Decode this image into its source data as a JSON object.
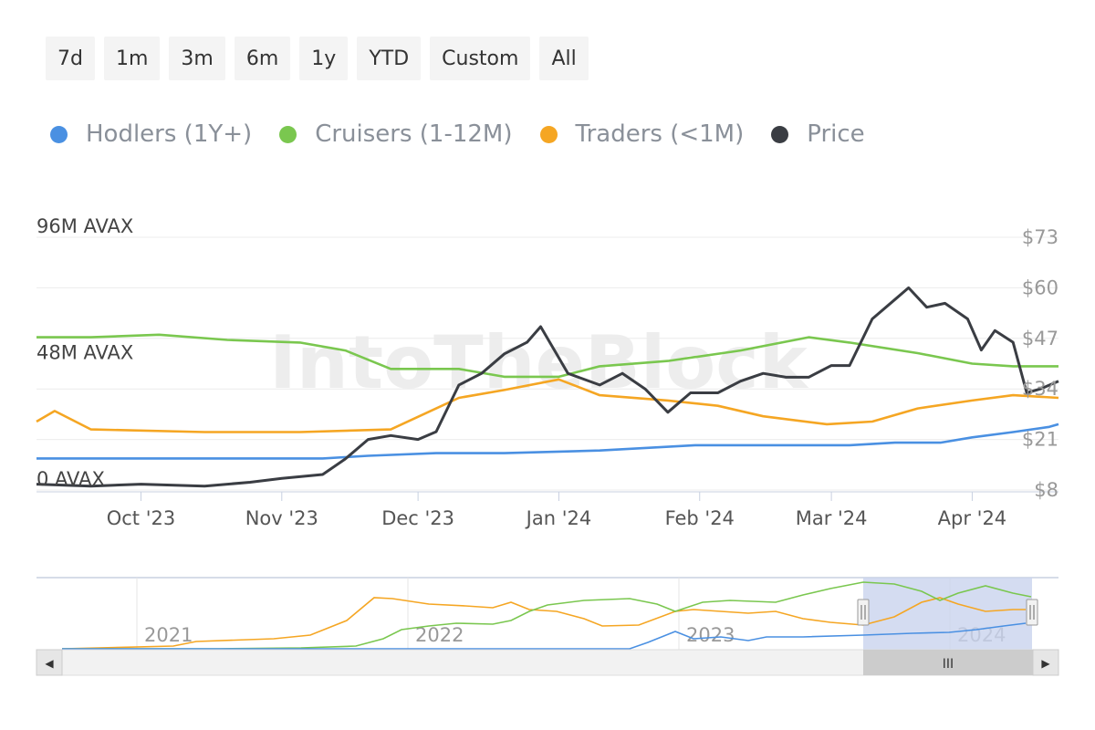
{
  "range_buttons": [
    "7d",
    "1m",
    "3m",
    "6m",
    "1y",
    "YTD",
    "Custom",
    "All"
  ],
  "watermark": "IntoTheBlock",
  "colors": {
    "hodlers": "#4a90e2",
    "cruisers": "#7ac74f",
    "traders": "#f5a623",
    "price": "#3a3d43",
    "navigator_selection": "#c9d3ee"
  },
  "chart_data": {
    "type": "line",
    "legend": [
      {
        "name": "Hodlers (1Y+)",
        "color": "#4a90e2"
      },
      {
        "name": "Cruisers (1-12M)",
        "color": "#7ac74f"
      },
      {
        "name": "Traders (<1M)",
        "color": "#f5a623"
      },
      {
        "name": "Price",
        "color": "#3a3d43"
      }
    ],
    "legend_position": "top-left",
    "x_ticks": [
      "Oct '23",
      "Nov '23",
      "Dec '23",
      "Jan '24",
      "Feb '24",
      "Mar '24",
      "Apr '24"
    ],
    "x_tick_dates": [
      "2023-10-01",
      "2023-11-01",
      "2023-12-01",
      "2024-01-01",
      "2024-02-01",
      "2024-03-01",
      "2024-04-01"
    ],
    "x_range": [
      "2023-09-08",
      "2024-04-20"
    ],
    "y_left": {
      "range": [
        0,
        96
      ],
      "unit": "M AVAX",
      "ticks": [
        "0 AVAX",
        "48M AVAX",
        "96M AVAX"
      ],
      "tick_values": [
        0,
        48,
        96
      ]
    },
    "y_right": {
      "range": [
        8,
        73
      ],
      "unit": "$",
      "ticks": [
        "$8",
        "$21",
        "$34",
        "$47",
        "$60",
        "$73"
      ],
      "tick_values": [
        8,
        21,
        34,
        47,
        60,
        73
      ]
    },
    "grid": true,
    "series": [
      {
        "name": "Hodlers (1Y+)",
        "axis": "left",
        "x": [
          "2023-09-08",
          "2023-10-15",
          "2023-11-10",
          "2023-11-20",
          "2023-12-05",
          "2023-12-20",
          "2024-01-10",
          "2024-01-31",
          "2024-02-20",
          "2024-03-05",
          "2024-03-15",
          "2024-03-25",
          "2024-04-01",
          "2024-04-10",
          "2024-04-18",
          "2024-04-20"
        ],
        "values": [
          12,
          12,
          12,
          13,
          14,
          14,
          15,
          17,
          17,
          17,
          18,
          18,
          20,
          22,
          24,
          25
        ]
      },
      {
        "name": "Cruisers (1-12M)",
        "axis": "left",
        "x": [
          "2023-09-08",
          "2023-09-20",
          "2023-10-05",
          "2023-10-20",
          "2023-11-05",
          "2023-11-15",
          "2023-11-25",
          "2023-12-10",
          "2023-12-20",
          "2024-01-01",
          "2024-01-10",
          "2024-01-25",
          "2024-02-10",
          "2024-02-25",
          "2024-03-05",
          "2024-03-20",
          "2024-04-01",
          "2024-04-10",
          "2024-04-20"
        ],
        "values": [
          58,
          58,
          59,
          57,
          56,
          53,
          46,
          46,
          43,
          43,
          47,
          49,
          53,
          58,
          56,
          52,
          48,
          47,
          47
        ]
      },
      {
        "name": "Traders (<1M)",
        "axis": "left",
        "x": [
          "2023-09-08",
          "2023-09-12",
          "2023-09-20",
          "2023-10-15",
          "2023-11-05",
          "2023-11-25",
          "2023-12-05",
          "2023-12-10",
          "2023-12-20",
          "2024-01-01",
          "2024-01-10",
          "2024-01-25",
          "2024-02-05",
          "2024-02-15",
          "2024-02-29",
          "2024-03-10",
          "2024-03-20",
          "2024-04-01",
          "2024-04-10",
          "2024-04-20"
        ],
        "values": [
          26,
          30,
          23,
          22,
          22,
          23,
          31,
          35,
          38,
          42,
          36,
          34,
          32,
          28,
          25,
          26,
          31,
          34,
          36,
          35
        ]
      },
      {
        "name": "Price",
        "axis": "right",
        "x": [
          "2023-09-08",
          "2023-09-20",
          "2023-10-01",
          "2023-10-15",
          "2023-10-25",
          "2023-11-01",
          "2023-11-10",
          "2023-11-15",
          "2023-11-20",
          "2023-11-25",
          "2023-12-01",
          "2023-12-05",
          "2023-12-10",
          "2023-12-15",
          "2023-12-20",
          "2023-12-25",
          "2023-12-28",
          "2024-01-03",
          "2024-01-10",
          "2024-01-15",
          "2024-01-20",
          "2024-01-25",
          "2024-01-30",
          "2024-02-05",
          "2024-02-10",
          "2024-02-15",
          "2024-02-20",
          "2024-02-25",
          "2024-03-01",
          "2024-03-05",
          "2024-03-10",
          "2024-03-15",
          "2024-03-18",
          "2024-03-22",
          "2024-03-26",
          "2024-03-31",
          "2024-04-03",
          "2024-04-06",
          "2024-04-10",
          "2024-04-13",
          "2024-04-16",
          "2024-04-20"
        ],
        "values": [
          9.5,
          9.0,
          9.5,
          9.0,
          10,
          11,
          12,
          16,
          21,
          22,
          21,
          23,
          35,
          38,
          43,
          46,
          50,
          38,
          35,
          38,
          34,
          28,
          33,
          33,
          36,
          38,
          37,
          37,
          40,
          40,
          52,
          57,
          60,
          55,
          56,
          52,
          44,
          49,
          46,
          33,
          34,
          36
        ]
      }
    ]
  },
  "navigator": {
    "year_labels": [
      "2021",
      "2022",
      "2023",
      "2024"
    ],
    "scroll_left_arrow": "◀",
    "scroll_right_arrow": "▶",
    "scroll_thumb_grip": "III"
  }
}
